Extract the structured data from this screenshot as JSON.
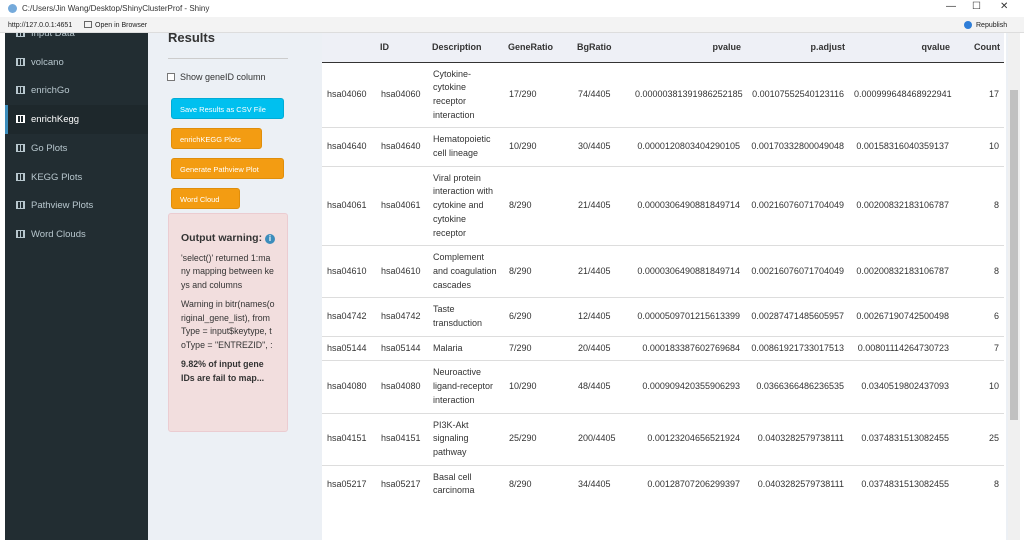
{
  "window": {
    "title": "C:/Users/Jin Wang/Desktop/ShinyClusterProf - Shiny",
    "url": "http://127.0.0.1:4651",
    "open_in_browser": "Open in Browser",
    "republish": "Republish"
  },
  "sidebar": {
    "items": [
      "Input Data",
      "volcano",
      "enrichGo",
      "enrichKegg",
      "Go Plots",
      "KEGG Plots",
      "Pathview Plots",
      "Word Clouds"
    ],
    "active": 3
  },
  "panel": {
    "heading": "Results",
    "checkbox_label": "Show geneID column",
    "buttons": [
      "Save Results as CSV File",
      "enrichKEGG Plots",
      "Generate Pathview Plot",
      "Word Cloud"
    ],
    "warning": {
      "title": "Output warning:",
      "messages": [
        "'select()' returned 1:many mapping between keys and columns",
        "Warning in bitr(names(original_gene_list), fromType = input$keytype, toType = \"ENTREZID\", :"
      ],
      "summary": "9.82% of input gene IDs are fail to map..."
    }
  },
  "table": {
    "columns": [
      "ID",
      "Description",
      "GeneRatio",
      "BgRatio",
      "pvalue",
      "p.adjust",
      "qvalue",
      "Count"
    ],
    "rows": [
      [
        "hsa04060",
        "hsa04060",
        "Cytokine-cytokine receptor interaction",
        "17/290",
        "74/4405",
        "0.00000381391986252185",
        "0.00107552540123116",
        "0.000999648468922941",
        "17"
      ],
      [
        "hsa04640",
        "hsa04640",
        "Hematopoietic cell lineage",
        "10/290",
        "30/4405",
        "0.0000120803404290105",
        "0.00170332800049048",
        "0.00158316040359137",
        "10"
      ],
      [
        "hsa04061",
        "hsa04061",
        "Viral protein interaction with cytokine and cytokine receptor",
        "8/290",
        "21/4405",
        "0.0000306490881849714",
        "0.00216076071704049",
        "0.00200832183106787",
        "8"
      ],
      [
        "hsa04610",
        "hsa04610",
        "Complement and coagulation cascades",
        "8/290",
        "21/4405",
        "0.0000306490881849714",
        "0.00216076071704049",
        "0.00200832183106787",
        "8"
      ],
      [
        "hsa04742",
        "hsa04742",
        "Taste transduction",
        "6/290",
        "12/4405",
        "0.0000509701215613399",
        "0.00287471485605957",
        "0.00267190742500498",
        "6"
      ],
      [
        "hsa05144",
        "hsa05144",
        "Malaria",
        "7/290",
        "20/4405",
        "0.000183387602769684",
        "0.00861921733017513",
        "0.00801114264730723",
        "7"
      ],
      [
        "hsa04080",
        "hsa04080",
        "Neuroactive ligand-receptor interaction",
        "10/290",
        "48/4405",
        "0.000909420355906293",
        "0.0366366486236535",
        "0.0340519802437093",
        "10"
      ],
      [
        "hsa04151",
        "hsa04151",
        "PI3K-Akt signaling pathway",
        "25/290",
        "200/4405",
        "0.00123204656521924",
        "0.0403282579738111",
        "0.0374831513082455",
        "25"
      ],
      [
        "hsa05217",
        "hsa05217",
        "Basal cell carcinoma",
        "8/290",
        "34/4405",
        "0.00128707206299397",
        "0.0403282579738111",
        "0.0374831513082455",
        "8"
      ]
    ]
  }
}
